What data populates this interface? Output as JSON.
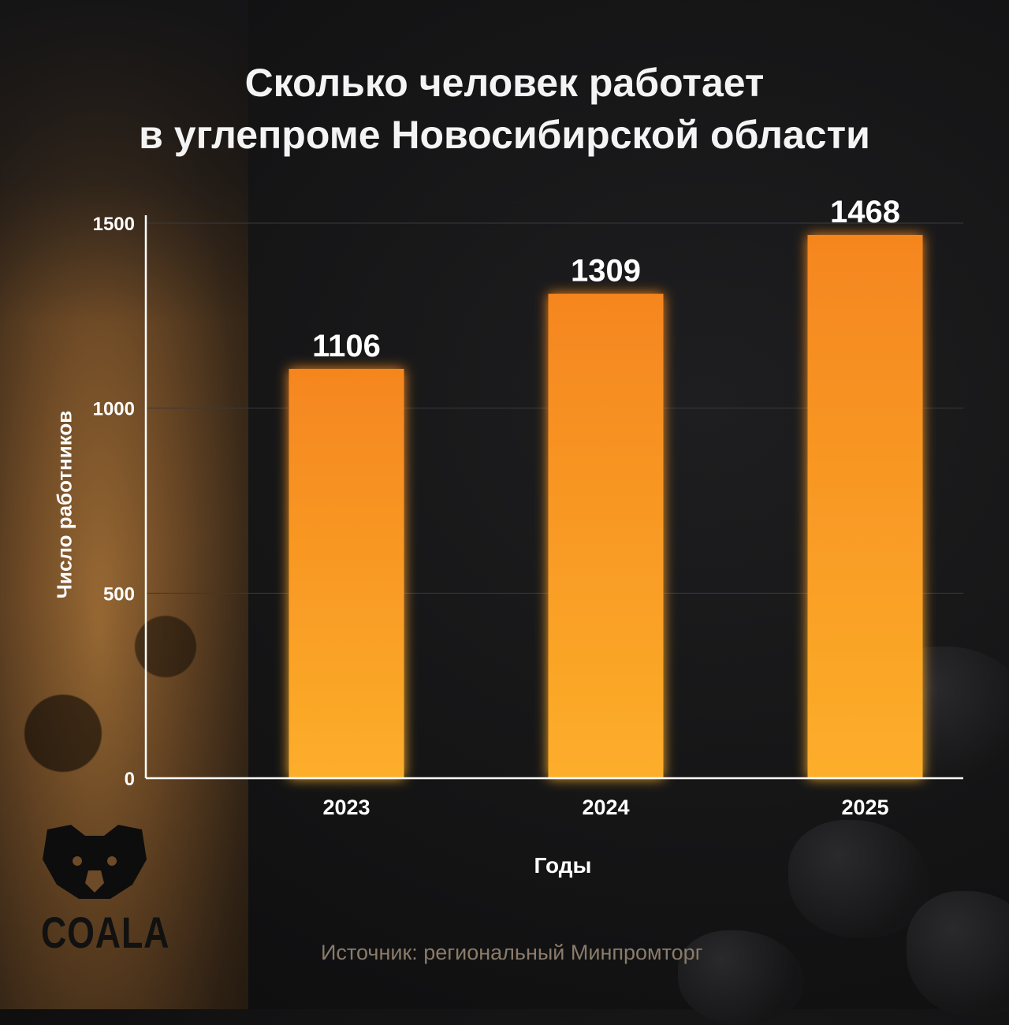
{
  "title": {
    "line1": "Сколько человек работает",
    "line2": "в углепроме Новосибирской области"
  },
  "chart_data": {
    "type": "bar",
    "categories": [
      "2023",
      "2024",
      "2025"
    ],
    "values": [
      1106,
      1309,
      1468
    ],
    "data_labels": [
      "1106",
      "1309",
      "1468"
    ],
    "xlabel": "Годы",
    "ylabel": "Число работников",
    "ylim": [
      0,
      1500
    ],
    "yticks": [
      0,
      500,
      1000,
      1500
    ],
    "grid": true,
    "bar_color": "#f7941d"
  },
  "logo": {
    "text": "COALA",
    "icon": "koala-icon"
  },
  "source": "Источник: региональный Минпромторг"
}
